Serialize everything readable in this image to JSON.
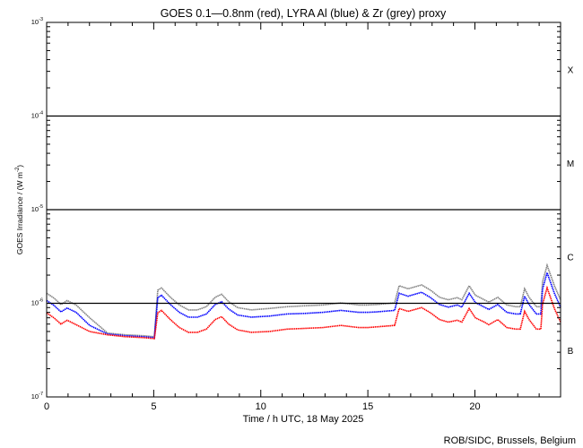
{
  "chart_data": {
    "type": "line",
    "title": "GOES 0.1—0.8nm (red), LYRA Al (blue) & Zr (grey) proxy",
    "xlabel": "Time / h UTC, 18 May 2025",
    "ylabel": "GOES Irradiance / (W m",
    "ylabel_sup": "-2",
    "ylabel_close": ")",
    "xlim": [
      0,
      24
    ],
    "ylim": [
      1e-07,
      0.001
    ],
    "yscale": "log",
    "x_ticks": [
      "0",
      "5",
      "10",
      "15",
      "20"
    ],
    "x_tick_values": [
      0,
      5,
      10,
      15,
      20
    ],
    "y_ticks": [
      {
        "base": "10",
        "exp": "-3",
        "value": 0.001
      },
      {
        "base": "10",
        "exp": "-4",
        "value": 0.0001
      },
      {
        "base": "10",
        "exp": "-5",
        "value": 1e-05
      },
      {
        "base": "10",
        "exp": "-6",
        "value": 1e-06
      },
      {
        "base": "10",
        "exp": "-7",
        "value": 1e-07
      }
    ],
    "flare_classes": [
      {
        "label": "X",
        "value": 0.000316
      },
      {
        "label": "M",
        "value": 3.16e-05
      },
      {
        "label": "C",
        "value": 3.16e-06
      },
      {
        "label": "B",
        "value": 3.16e-07
      }
    ],
    "threshold_lines": [
      0.0001,
      1e-05,
      1e-06
    ],
    "value_multiplier": 1e-07,
    "x": [
      0,
      0.34,
      0.67,
      0.96,
      1.38,
      2.01,
      2.85,
      3.69,
      4.52,
      5.03,
      5.19,
      5.36,
      5.78,
      6.2,
      6.62,
      7.04,
      7.46,
      7.87,
      8.17,
      8.5,
      8.92,
      9.55,
      10.39,
      11.23,
      12.06,
      12.9,
      13.74,
      14.58,
      14.99,
      15.41,
      16.25,
      16.46,
      16.88,
      17.51,
      17.93,
      18.35,
      18.76,
      19.18,
      19.39,
      19.73,
      20.02,
      20.44,
      20.65,
      21.07,
      21.49,
      21.91,
      22.12,
      22.32,
      22.53,
      22.87,
      23.08,
      23.16,
      23.37,
      23.71,
      24
    ],
    "series": [
      {
        "name": "LYRA Zr proxy",
        "color": "#808080",
        "values": [
          12.8,
          11.4,
          9.7,
          10.7,
          9.6,
          7.0,
          4.8,
          4.6,
          4.5,
          4.4,
          13.8,
          14.6,
          11.6,
          9.6,
          8.5,
          8.5,
          9.2,
          11.6,
          12.5,
          10.4,
          9.0,
          8.5,
          8.8,
          9.2,
          9.4,
          9.6,
          10.1,
          9.6,
          9.6,
          9.7,
          10.1,
          15.4,
          14.3,
          15.7,
          13.8,
          11.6,
          10.9,
          11.5,
          10.9,
          15.4,
          12.2,
          10.9,
          10.3,
          11.6,
          9.6,
          9.2,
          9.2,
          14.3,
          11.6,
          9.2,
          9.2,
          17.0,
          25.4,
          15.4,
          10.9
        ]
      },
      {
        "name": "LYRA Al proxy",
        "color": "#0000ff",
        "values": [
          10.7,
          9.5,
          8.1,
          8.9,
          8.0,
          5.8,
          4.7,
          4.5,
          4.4,
          4.3,
          11.5,
          12.2,
          9.7,
          8.0,
          7.1,
          7.1,
          7.7,
          9.7,
          10.4,
          8.7,
          7.5,
          7.1,
          7.3,
          7.7,
          7.8,
          8.0,
          8.4,
          8.0,
          8.0,
          8.1,
          8.4,
          12.8,
          11.9,
          13.1,
          11.5,
          9.7,
          9.1,
          9.6,
          9.1,
          12.8,
          10.2,
          9.1,
          8.6,
          9.7,
          8.0,
          7.7,
          7.7,
          11.9,
          9.7,
          7.7,
          7.7,
          14.2,
          21.2,
          12.8,
          9.1
        ]
      },
      {
        "name": "GOES 0.1-0.8nm",
        "color": "#ff0000",
        "values": [
          7.9,
          7.0,
          6.0,
          6.6,
          5.9,
          5.0,
          4.6,
          4.4,
          4.3,
          4.2,
          7.9,
          8.4,
          6.7,
          5.5,
          4.9,
          4.9,
          5.3,
          6.7,
          7.2,
          6.0,
          5.2,
          4.9,
          5.0,
          5.3,
          5.4,
          5.5,
          5.8,
          5.5,
          5.5,
          5.6,
          5.8,
          8.8,
          8.2,
          9.0,
          7.9,
          6.7,
          6.3,
          6.6,
          6.3,
          8.8,
          7.0,
          6.3,
          5.9,
          6.7,
          5.5,
          5.3,
          5.3,
          8.2,
          6.7,
          5.3,
          5.3,
          9.8,
          14.6,
          8.8,
          6.3
        ]
      }
    ],
    "grid": false,
    "legend": "none"
  },
  "footer": "ROB/SIDC, Brussels, Belgium"
}
